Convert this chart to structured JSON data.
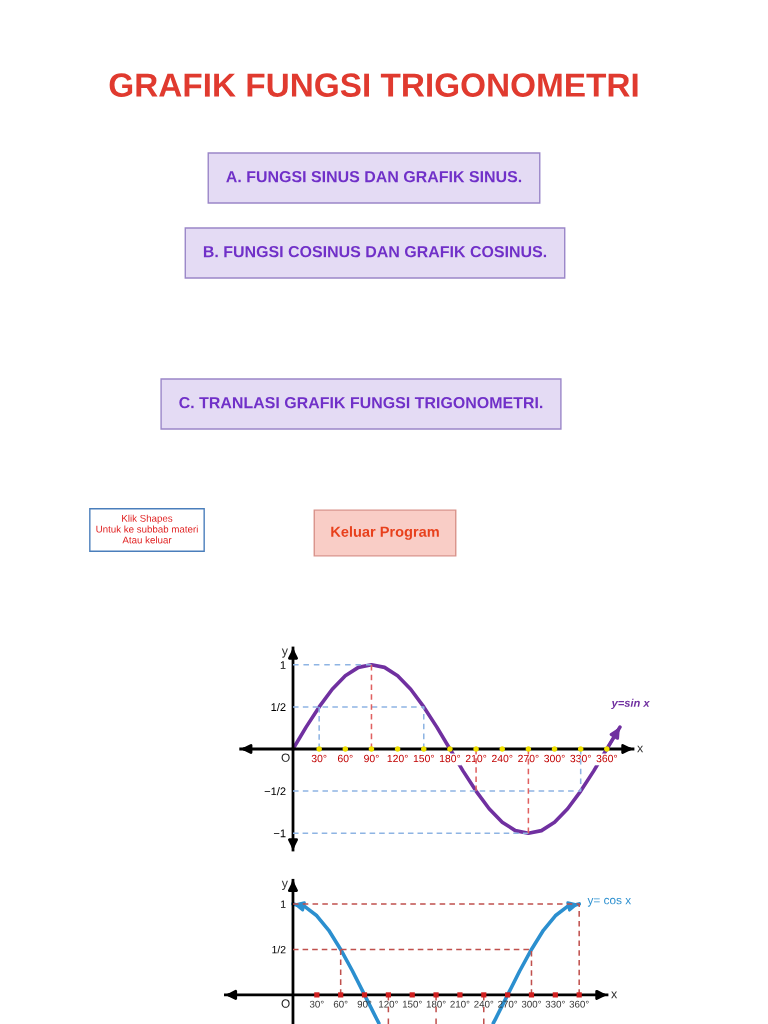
{
  "chart_data": [
    {
      "type": "other",
      "title": "GRAFIK FUNGSI TRIGONOMETRI",
      "annotations": [
        "A. FUNGSI SINUS DAN GRAFIK SINUS.",
        "B. FUNGSI COSINUS DAN GRAFIK COSINUS.",
        "C. TRANLASI GRAFIK FUNGSI TRIGONOMETRI.",
        "Klik Shapes\nUntuk ke subbab materi\nAtau keluar",
        "Keluar Program"
      ]
    },
    {
      "type": "line",
      "xlabel": "x",
      "ylabel": "y",
      "xlim": [
        -60,
        390
      ],
      "ylim": [
        -1.2,
        1.2
      ],
      "xticks": [
        {
          "value": 30,
          "label": "30°"
        },
        {
          "value": 60,
          "label": "60°"
        },
        {
          "value": 90,
          "label": "90°"
        },
        {
          "value": 120,
          "label": "120°"
        },
        {
          "value": 150,
          "label": "150°"
        },
        {
          "value": 180,
          "label": "180°"
        },
        {
          "value": 210,
          "label": "210°"
        },
        {
          "value": 240,
          "label": "240°"
        },
        {
          "value": 270,
          "label": "270°"
        },
        {
          "value": 300,
          "label": "300°"
        },
        {
          "value": 330,
          "label": "330°"
        },
        {
          "value": 360,
          "label": "360°"
        }
      ],
      "yticks": [
        {
          "value": -1,
          "label": "−1"
        },
        {
          "value": -0.5,
          "label": "−1/2"
        },
        {
          "value": 0.5,
          "label": "1/2"
        },
        {
          "value": 1,
          "label": "1"
        }
      ],
      "annotations": [
        "O"
      ],
      "series": [
        {
          "type": "line",
          "line_style": "dashed",
          "color": "#8eb4e3",
          "x": [
            0,
            90
          ],
          "values": [
            1,
            1
          ]
        },
        {
          "type": "line",
          "line_style": "dashed",
          "color": "#8eb4e3",
          "x": [
            0,
            150,
            150
          ],
          "values": [
            0.5,
            0.5,
            0
          ]
        },
        {
          "type": "line",
          "line_style": "dashed",
          "color": "#8eb4e3",
          "x": [
            30,
            30
          ],
          "values": [
            0.5,
            0
          ]
        },
        {
          "type": "line",
          "line_style": "dashed",
          "color": "#8eb4e3",
          "x": [
            0,
            330,
            330
          ],
          "values": [
            -0.5,
            -0.5,
            0
          ]
        },
        {
          "type": "line",
          "line_style": "dashed",
          "color": "#8eb4e3",
          "x": [
            0,
            270
          ],
          "values": [
            -1,
            -1
          ]
        },
        {
          "type": "line",
          "line_style": "dashed",
          "color": "#e06060",
          "x": [
            90,
            90
          ],
          "values": [
            0,
            1
          ]
        },
        {
          "type": "line",
          "line_style": "dashed",
          "color": "#e06060",
          "x": [
            210,
            210
          ],
          "values": [
            0,
            -0.5
          ]
        },
        {
          "type": "line",
          "line_style": "dashed",
          "color": "#e06060",
          "x": [
            270,
            270
          ],
          "values": [
            0,
            -1
          ]
        },
        {
          "name": "y=sin x",
          "color": "#7030a0",
          "x": [
            0,
            15,
            30,
            45,
            60,
            75,
            90,
            105,
            120,
            135,
            150,
            165,
            180,
            195,
            210,
            225,
            240,
            255,
            270,
            285,
            300,
            315,
            330,
            345,
            360,
            375
          ],
          "values": [
            0,
            0.26,
            0.5,
            0.71,
            0.87,
            0.97,
            1,
            0.97,
            0.87,
            0.71,
            0.5,
            0.26,
            0,
            -0.26,
            -0.5,
            -0.71,
            -0.87,
            -0.97,
            -1,
            -0.97,
            -0.87,
            -0.71,
            -0.5,
            -0.26,
            0,
            0.26
          ]
        },
        {
          "type": "scatter",
          "marker": "circle",
          "color": "#f0e000",
          "x": [
            30,
            60,
            90,
            120,
            150,
            180,
            210,
            240,
            270,
            300,
            330,
            360
          ],
          "values": [
            0,
            0,
            0,
            0,
            0,
            0,
            0,
            0,
            0,
            0,
            0,
            0
          ]
        }
      ]
    },
    {
      "type": "line",
      "xlabel": "x",
      "ylabel": "y",
      "xlim": [
        -85,
        395
      ],
      "ylim": [
        -0.32,
        1.26
      ],
      "xticks": [
        {
          "value": 30,
          "label": "30°"
        },
        {
          "value": 60,
          "label": "60°"
        },
        {
          "value": 90,
          "label": "90°"
        },
        {
          "value": 120,
          "label": "120°"
        },
        {
          "value": 150,
          "label": "150°"
        },
        {
          "value": 180,
          "label": "180°"
        },
        {
          "value": 210,
          "label": "210°"
        },
        {
          "value": 240,
          "label": "240°"
        },
        {
          "value": 270,
          "label": "270°"
        },
        {
          "value": 300,
          "label": "300°"
        },
        {
          "value": 330,
          "label": "330°"
        },
        {
          "value": 360,
          "label": "360°"
        }
      ],
      "yticks": [
        {
          "value": 0.5,
          "label": "1/2"
        },
        1
      ],
      "annotations": [
        "O"
      ],
      "series": [
        {
          "type": "line",
          "line_style": "dashed",
          "color": "#c0504d",
          "x": [
            0,
            360,
            360
          ],
          "values": [
            1,
            1,
            0
          ]
        },
        {
          "type": "line",
          "line_style": "dashed",
          "color": "#c0504d",
          "x": [
            0,
            300,
            300
          ],
          "values": [
            0.5,
            0.5,
            0
          ]
        },
        {
          "type": "line",
          "line_style": "dashed",
          "color": "#c0504d",
          "x": [
            60,
            60
          ],
          "values": [
            0.5,
            0
          ]
        },
        {
          "type": "line",
          "line_style": "dashed",
          "color": "#c0504d",
          "x": [
            120,
            120
          ],
          "values": [
            0,
            -0.32
          ]
        },
        {
          "type": "line",
          "line_style": "dashed",
          "color": "#c0504d",
          "x": [
            180,
            180
          ],
          "values": [
            0,
            -0.32
          ]
        },
        {
          "type": "line",
          "line_style": "dashed",
          "color": "#c0504d",
          "x": [
            240,
            240
          ],
          "values": [
            0,
            -0.32
          ]
        },
        {
          "name": "y= cos x",
          "color": "#2b8fcf",
          "x": [
            0,
            15,
            30,
            45,
            60,
            75,
            90,
            105,
            108,
            180,
            252,
            255,
            270,
            285,
            300,
            315,
            330,
            345,
            360
          ],
          "values": [
            1,
            0.97,
            0.87,
            0.71,
            0.5,
            0.26,
            0,
            -0.26,
            -0.31,
            null,
            -0.31,
            -0.26,
            0,
            0.26,
            0.5,
            0.71,
            0.87,
            0.97,
            1
          ]
        },
        {
          "type": "scatter",
          "marker": "square",
          "color": "#d02020",
          "x": [
            30,
            60,
            90,
            120,
            150,
            180,
            210,
            240,
            270,
            300,
            330,
            360
          ],
          "values": [
            0,
            0,
            0,
            0,
            0,
            0,
            0,
            0,
            0,
            0,
            0,
            0
          ]
        }
      ]
    }
  ]
}
